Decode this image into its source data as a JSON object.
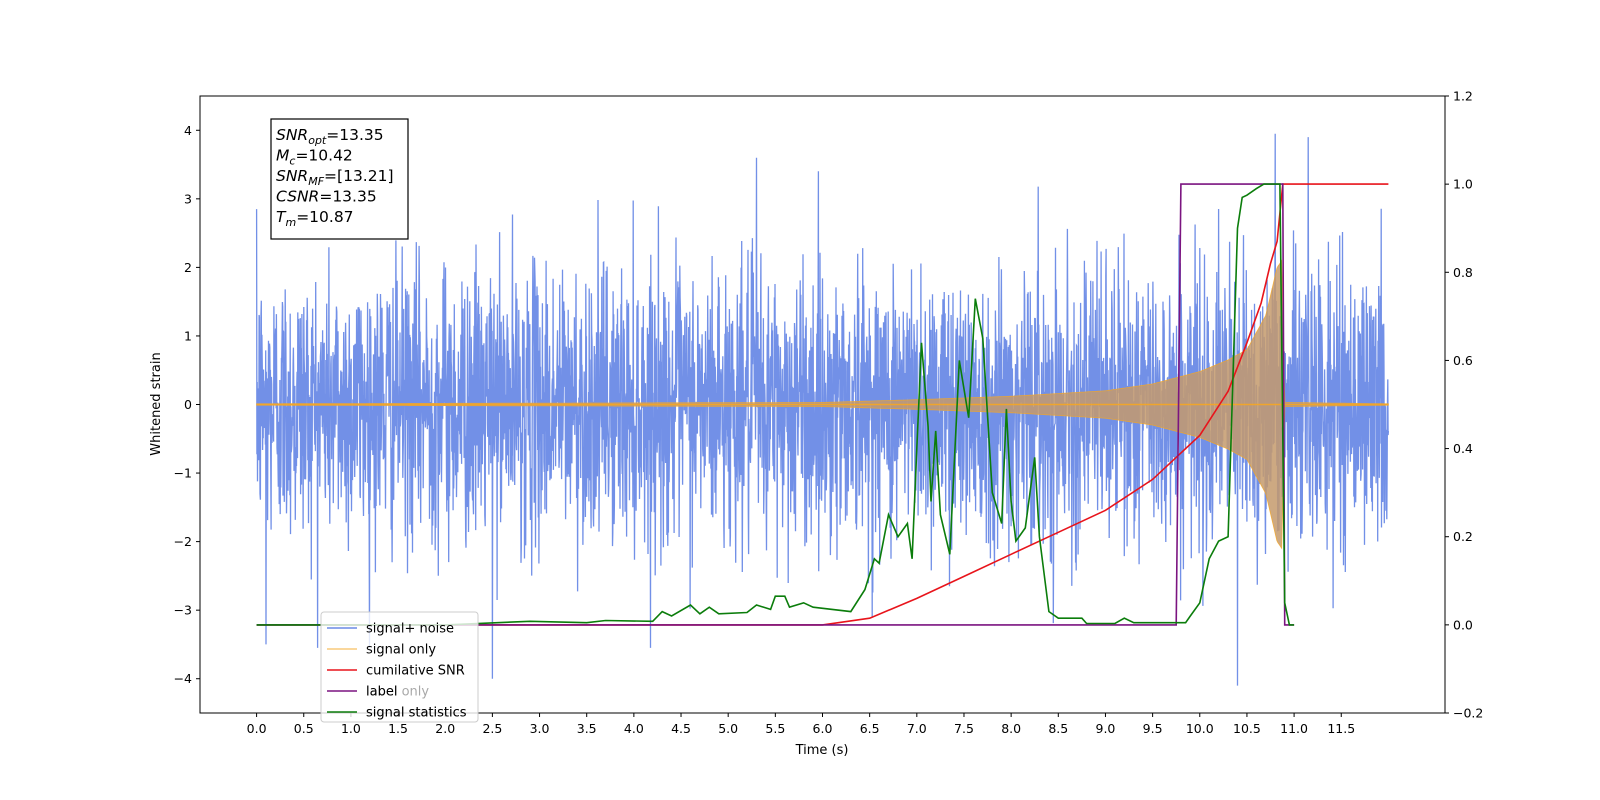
{
  "chart_data": {
    "type": "line",
    "xlabel": "Time (s)",
    "ylabel": "Whitened strain",
    "xlim": [
      -0.6,
      12.6
    ],
    "ylim": [
      -4.5,
      4.5
    ],
    "y2lim": [
      -0.2,
      1.2
    ],
    "x_ticks": [
      0.0,
      0.5,
      1.0,
      1.5,
      2.0,
      2.5,
      3.0,
      3.5,
      4.0,
      4.5,
      5.0,
      5.5,
      6.0,
      6.5,
      7.0,
      7.5,
      8.0,
      8.5,
      9.0,
      9.5,
      10.0,
      10.5,
      11.0,
      11.5
    ],
    "x_tick_labels": [
      "0.0",
      "0.5",
      "1.0",
      "1.5",
      "2.0",
      "2.5",
      "3.0",
      "3.5",
      "4.0",
      "4.5",
      "5.0",
      "5.5",
      "6.0",
      "6.5",
      "7.0",
      "7.5",
      "8.0",
      "8.5",
      "9.0",
      "9.5",
      "10.0",
      "10.5",
      "11.0",
      "11.5"
    ],
    "y_ticks": [
      -4,
      -3,
      -2,
      -1,
      0,
      1,
      2,
      3,
      4
    ],
    "y_tick_labels": [
      "−4",
      "−3",
      "−2",
      "−1",
      "0",
      "1",
      "2",
      "3",
      "4"
    ],
    "y2_ticks": [
      -0.2,
      0.0,
      0.2,
      0.4,
      0.6,
      0.8,
      1.0,
      1.2
    ],
    "y2_tick_labels": [
      "−0.2",
      "0.0",
      "0.2",
      "0.4",
      "0.6",
      "0.8",
      "1.0",
      "1.2"
    ],
    "grid": false,
    "legend_position": "bottom-left",
    "annotations": [
      {
        "base": "SNR",
        "sub": "opt",
        "rest": "=13.35"
      },
      {
        "base": "M",
        "sub": "c",
        "rest": "=10.42"
      },
      {
        "base": "SNR",
        "sub": "MF",
        "rest": "=[13.21]"
      },
      {
        "base": "CSNR",
        "sub": "",
        "rest": "=13.35"
      },
      {
        "base": "T",
        "sub": "m",
        "rest": "=10.87"
      }
    ],
    "series": [
      {
        "name": "signal+ noise",
        "color": "#6a8ae6",
        "axis": "left",
        "description": "noise band",
        "x_range": [
          0.0,
          12.0
        ],
        "typical_amplitude": 1.6,
        "peak_values": [
          {
            "x": 0.0,
            "y": 2.85
          },
          {
            "x": 0.1,
            "y": -3.5
          },
          {
            "x": 2.5,
            "y": -4.0
          },
          {
            "x": 5.3,
            "y": 3.6
          },
          {
            "x": 10.4,
            "y": -4.1
          },
          {
            "x": 10.8,
            "y": 3.95
          },
          {
            "x": 11.15,
            "y": 3.9
          }
        ]
      },
      {
        "name": "signal only",
        "color": "#f5a623",
        "axis": "left",
        "x_range": [
          0.0,
          12.0
        ],
        "merger_time": 10.87,
        "envelope": [
          {
            "x": 0.0,
            "y": 0.01
          },
          {
            "x": 6.0,
            "y": 0.03
          },
          {
            "x": 7.0,
            "y": 0.07
          },
          {
            "x": 8.0,
            "y": 0.12
          },
          {
            "x": 9.0,
            "y": 0.2
          },
          {
            "x": 9.5,
            "y": 0.3
          },
          {
            "x": 10.0,
            "y": 0.48
          },
          {
            "x": 10.3,
            "y": 0.65
          },
          {
            "x": 10.5,
            "y": 0.8
          },
          {
            "x": 10.7,
            "y": 1.3
          },
          {
            "x": 10.82,
            "y": 2.0
          },
          {
            "x": 10.87,
            "y": 2.1
          },
          {
            "x": 10.9,
            "y": 0.03
          },
          {
            "x": 12.0,
            "y": 0.01
          }
        ]
      },
      {
        "name": "cumilative SNR",
        "color": "#e8141b",
        "axis": "right",
        "points": [
          {
            "x": 0.0,
            "y": 0.0
          },
          {
            "x": 6.0,
            "y": 0.0
          },
          {
            "x": 6.5,
            "y": 0.015
          },
          {
            "x": 7.0,
            "y": 0.06
          },
          {
            "x": 7.5,
            "y": 0.11
          },
          {
            "x": 8.0,
            "y": 0.16
          },
          {
            "x": 8.5,
            "y": 0.21
          },
          {
            "x": 9.0,
            "y": 0.26
          },
          {
            "x": 9.5,
            "y": 0.33
          },
          {
            "x": 10.0,
            "y": 0.43
          },
          {
            "x": 10.3,
            "y": 0.53
          },
          {
            "x": 10.5,
            "y": 0.64
          },
          {
            "x": 10.65,
            "y": 0.73
          },
          {
            "x": 10.75,
            "y": 0.82
          },
          {
            "x": 10.82,
            "y": 0.87
          },
          {
            "x": 10.88,
            "y": 1.0
          },
          {
            "x": 12.0,
            "y": 1.0
          }
        ]
      },
      {
        "name": "label",
        "color": "#7b1480",
        "axis": "right",
        "points": [
          {
            "x": 0.0,
            "y": 0.0
          },
          {
            "x": 9.75,
            "y": 0.0
          },
          {
            "x": 9.8,
            "y": 1.0
          },
          {
            "x": 10.88,
            "y": 1.0
          },
          {
            "x": 10.9,
            "y": 0.0
          },
          {
            "x": 11.0,
            "y": 0.0
          }
        ]
      },
      {
        "name": "signal statistics",
        "color": "#0b7d0b",
        "axis": "right",
        "points": [
          {
            "x": 0.0,
            "y": 0.0
          },
          {
            "x": 2.0,
            "y": 0.0
          },
          {
            "x": 2.9,
            "y": 0.008
          },
          {
            "x": 3.5,
            "y": 0.005
          },
          {
            "x": 3.7,
            "y": 0.01
          },
          {
            "x": 4.2,
            "y": 0.008
          },
          {
            "x": 4.3,
            "y": 0.03
          },
          {
            "x": 4.4,
            "y": 0.02
          },
          {
            "x": 4.6,
            "y": 0.045
          },
          {
            "x": 4.7,
            "y": 0.025
          },
          {
            "x": 4.8,
            "y": 0.04
          },
          {
            "x": 4.9,
            "y": 0.025
          },
          {
            "x": 5.2,
            "y": 0.028
          },
          {
            "x": 5.3,
            "y": 0.045
          },
          {
            "x": 5.45,
            "y": 0.035
          },
          {
            "x": 5.5,
            "y": 0.065
          },
          {
            "x": 5.6,
            "y": 0.065
          },
          {
            "x": 5.65,
            "y": 0.04
          },
          {
            "x": 5.8,
            "y": 0.05
          },
          {
            "x": 5.9,
            "y": 0.04
          },
          {
            "x": 6.3,
            "y": 0.03
          },
          {
            "x": 6.45,
            "y": 0.08
          },
          {
            "x": 6.55,
            "y": 0.15
          },
          {
            "x": 6.6,
            "y": 0.14
          },
          {
            "x": 6.7,
            "y": 0.25
          },
          {
            "x": 6.8,
            "y": 0.2
          },
          {
            "x": 6.9,
            "y": 0.23
          },
          {
            "x": 6.95,
            "y": 0.15
          },
          {
            "x": 7.0,
            "y": 0.4
          },
          {
            "x": 7.05,
            "y": 0.64
          },
          {
            "x": 7.12,
            "y": 0.45
          },
          {
            "x": 7.15,
            "y": 0.28
          },
          {
            "x": 7.2,
            "y": 0.44
          },
          {
            "x": 7.25,
            "y": 0.25
          },
          {
            "x": 7.35,
            "y": 0.16
          },
          {
            "x": 7.45,
            "y": 0.6
          },
          {
            "x": 7.55,
            "y": 0.47
          },
          {
            "x": 7.62,
            "y": 0.74
          },
          {
            "x": 7.7,
            "y": 0.65
          },
          {
            "x": 7.8,
            "y": 0.3
          },
          {
            "x": 7.9,
            "y": 0.23
          },
          {
            "x": 7.95,
            "y": 0.49
          },
          {
            "x": 8.0,
            "y": 0.28
          },
          {
            "x": 8.05,
            "y": 0.19
          },
          {
            "x": 8.15,
            "y": 0.22
          },
          {
            "x": 8.2,
            "y": 0.3
          },
          {
            "x": 8.25,
            "y": 0.38
          },
          {
            "x": 8.3,
            "y": 0.2
          },
          {
            "x": 8.4,
            "y": 0.03
          },
          {
            "x": 8.5,
            "y": 0.015
          },
          {
            "x": 8.75,
            "y": 0.015
          },
          {
            "x": 8.8,
            "y": 0.003
          },
          {
            "x": 9.1,
            "y": 0.003
          },
          {
            "x": 9.2,
            "y": 0.015
          },
          {
            "x": 9.3,
            "y": 0.005
          },
          {
            "x": 9.85,
            "y": 0.005
          },
          {
            "x": 9.9,
            "y": 0.02
          },
          {
            "x": 10.0,
            "y": 0.05
          },
          {
            "x": 10.1,
            "y": 0.15
          },
          {
            "x": 10.2,
            "y": 0.19
          },
          {
            "x": 10.3,
            "y": 0.2
          },
          {
            "x": 10.35,
            "y": 0.55
          },
          {
            "x": 10.4,
            "y": 0.9
          },
          {
            "x": 10.45,
            "y": 0.97
          },
          {
            "x": 10.5,
            "y": 0.975
          },
          {
            "x": 10.6,
            "y": 0.99
          },
          {
            "x": 10.68,
            "y": 1.0
          },
          {
            "x": 10.85,
            "y": 1.0
          },
          {
            "x": 10.9,
            "y": 0.05
          },
          {
            "x": 10.95,
            "y": 0.0
          },
          {
            "x": 11.0,
            "y": 0.0
          }
        ]
      }
    ],
    "legend_overlay_text": [
      "label only",
      "signal statistics"
    ]
  }
}
